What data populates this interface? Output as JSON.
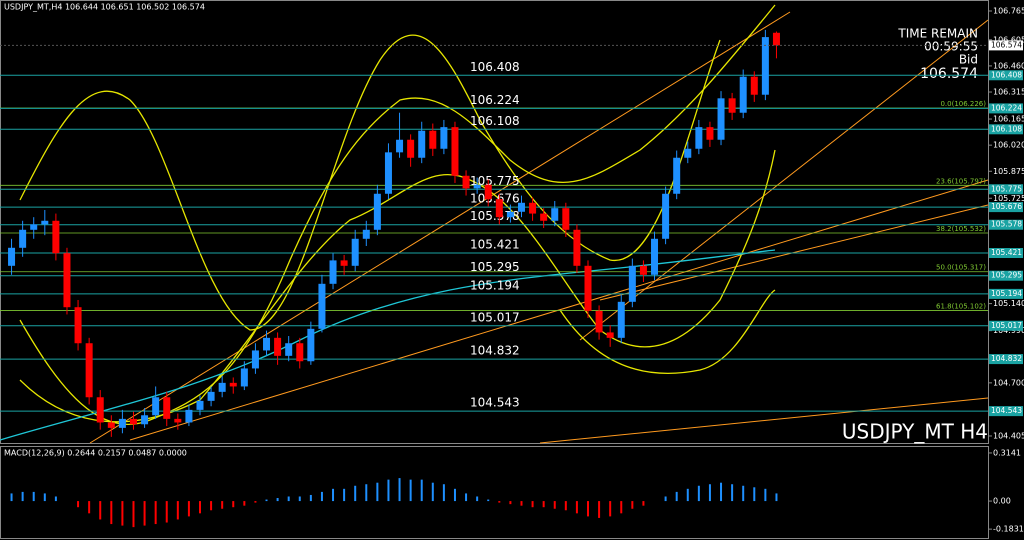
{
  "chart_data": {
    "type": "candlestick",
    "header": "USDJPY_MT,H4  106.644 106.651 106.502 106.574",
    "symbol_label": "USDJPY_MT H4",
    "time_remain_label": "TIME REMAIN",
    "time_remain": "00:59:55",
    "bid_label": "Bid",
    "bid": 106.574,
    "up_color": "#1e90ff",
    "down_color": "#ff0000",
    "ylim": [
      104.366,
      106.826
    ],
    "yticks": [
      106.765,
      106.605,
      {
        "value": 106.46,
        "label": "106.460"
      },
      106.315,
      106.165,
      {
        "value": 106.02,
        "label": "106.020"
      },
      105.875,
      105.725,
      {
        "value": 105.14,
        "label": "105.140"
      },
      {
        "value": 104.99,
        "label": "104.990"
      },
      {
        "value": 104.7,
        "label": "104.700"
      },
      104.405
    ],
    "level_color": "#1aa3a3",
    "levels": [
      106.408,
      106.224,
      106.108,
      105.775,
      105.676,
      105.578,
      105.421,
      105.295,
      105.194,
      105.017,
      104.832,
      104.543
    ],
    "fib_color": "#7fc832",
    "fib_levels": [
      {
        "value": 106.226,
        "label": "0.0(106.226)"
      },
      {
        "value": 105.797,
        "label": "23.6(105.797)"
      },
      {
        "value": 105.532,
        "label": "38.2(105.532)"
      },
      {
        "value": 105.317,
        "label": "50.0(105.317)"
      },
      {
        "value": 105.102,
        "label": "61.8(105.102)"
      }
    ],
    "candles": [
      [
        105.35,
        105.5,
        105.3,
        105.45
      ],
      [
        105.45,
        105.6,
        105.4,
        105.55
      ],
      [
        105.55,
        105.62,
        105.5,
        105.58
      ],
      [
        105.58,
        105.66,
        105.52,
        105.6
      ],
      [
        105.6,
        105.64,
        105.38,
        105.42
      ],
      [
        105.42,
        105.45,
        105.08,
        105.12
      ],
      [
        105.12,
        105.16,
        104.88,
        104.92
      ],
      [
        104.92,
        104.95,
        104.58,
        104.62
      ],
      [
        104.62,
        104.66,
        104.44,
        104.48
      ],
      [
        104.48,
        104.52,
        104.4,
        104.45
      ],
      [
        104.45,
        104.55,
        104.42,
        104.5
      ],
      [
        104.5,
        104.54,
        104.44,
        104.47
      ],
      [
        104.47,
        104.56,
        104.45,
        104.52
      ],
      [
        104.52,
        104.68,
        104.5,
        104.62
      ],
      [
        104.62,
        104.65,
        104.46,
        104.5
      ],
      [
        104.5,
        104.53,
        104.44,
        104.48
      ],
      [
        104.48,
        104.58,
        104.46,
        104.55
      ],
      [
        104.55,
        104.63,
        104.52,
        104.6
      ],
      [
        104.6,
        104.68,
        104.57,
        104.65
      ],
      [
        104.65,
        104.74,
        104.62,
        104.7
      ],
      [
        104.7,
        104.73,
        104.64,
        104.68
      ],
      [
        104.68,
        104.82,
        104.66,
        104.78
      ],
      [
        104.78,
        104.92,
        104.75,
        104.88
      ],
      [
        104.88,
        104.99,
        104.85,
        104.95
      ],
      [
        104.95,
        104.98,
        104.8,
        104.85
      ],
      [
        104.85,
        104.96,
        104.82,
        104.92
      ],
      [
        104.92,
        104.95,
        104.78,
        104.82
      ],
      [
        104.82,
        105.04,
        104.8,
        105.0
      ],
      [
        105.0,
        105.3,
        104.98,
        105.25
      ],
      [
        105.25,
        105.42,
        105.22,
        105.38
      ],
      [
        105.38,
        105.41,
        105.3,
        105.35
      ],
      [
        105.35,
        105.55,
        105.32,
        105.5
      ],
      [
        105.5,
        105.6,
        105.46,
        105.55
      ],
      [
        105.55,
        105.8,
        105.52,
        105.75
      ],
      [
        105.75,
        106.03,
        105.72,
        105.98
      ],
      [
        105.98,
        106.2,
        105.95,
        106.05
      ],
      [
        106.05,
        106.08,
        105.9,
        105.95
      ],
      [
        105.95,
        106.15,
        105.92,
        106.1
      ],
      [
        106.1,
        106.14,
        105.96,
        106.0
      ],
      [
        106.0,
        106.16,
        105.97,
        106.12
      ],
      [
        106.12,
        106.15,
        105.81,
        105.85
      ],
      [
        105.85,
        105.88,
        105.74,
        105.78
      ],
      [
        105.78,
        105.84,
        105.75,
        105.8
      ],
      [
        105.8,
        105.83,
        105.68,
        105.72
      ],
      [
        105.72,
        105.75,
        105.58,
        105.62
      ],
      [
        105.62,
        105.69,
        105.59,
        105.65
      ],
      [
        105.65,
        105.74,
        105.62,
        105.7
      ],
      [
        105.7,
        105.73,
        105.6,
        105.64
      ],
      [
        105.64,
        105.67,
        105.56,
        105.6
      ],
      [
        105.6,
        105.71,
        105.57,
        105.67
      ],
      [
        105.67,
        105.7,
        105.51,
        105.55
      ],
      [
        105.55,
        105.58,
        105.31,
        105.35
      ],
      [
        105.35,
        105.38,
        105.06,
        105.1
      ],
      [
        105.1,
        105.13,
        104.94,
        104.98
      ],
      [
        104.98,
        105.02,
        104.9,
        104.95
      ],
      [
        104.95,
        105.19,
        104.92,
        105.15
      ],
      [
        105.15,
        105.39,
        105.12,
        105.35
      ],
      [
        105.35,
        105.38,
        105.26,
        105.3
      ],
      [
        105.3,
        105.54,
        105.27,
        105.5
      ],
      [
        105.5,
        105.79,
        105.47,
        105.75
      ],
      [
        105.75,
        105.99,
        105.72,
        105.95
      ],
      [
        105.95,
        106.04,
        105.92,
        106.0
      ],
      [
        106.0,
        106.16,
        105.97,
        106.12
      ],
      [
        106.12,
        106.15,
        106.01,
        106.05
      ],
      [
        106.05,
        106.32,
        106.02,
        106.28
      ],
      [
        106.28,
        106.31,
        106.16,
        106.2
      ],
      [
        106.2,
        106.44,
        106.17,
        106.4
      ],
      [
        106.4,
        106.43,
        106.26,
        106.3
      ],
      [
        106.3,
        106.66,
        106.27,
        106.62
      ],
      [
        106.644,
        106.651,
        106.502,
        106.574
      ]
    ],
    "macd": {
      "label": "MACD(12,26,9) 0.2644 0.2157 0.0487 0.0000",
      "ylim": [
        -0.241,
        0.353
      ],
      "yticks": [
        0.3141,
        {
          "value": 0,
          "label": "0.00"
        },
        -0.1831
      ],
      "values": [
        0.05,
        0.06,
        0.06,
        0.05,
        0.03,
        0.0,
        -0.04,
        -0.08,
        -0.12,
        -0.15,
        -0.16,
        -0.17,
        -0.16,
        -0.15,
        -0.14,
        -0.12,
        -0.1,
        -0.08,
        -0.06,
        -0.05,
        -0.04,
        -0.03,
        -0.01,
        0.01,
        0.02,
        0.03,
        0.03,
        0.04,
        0.06,
        0.08,
        0.08,
        0.1,
        0.11,
        0.12,
        0.14,
        0.15,
        0.14,
        0.14,
        0.12,
        0.11,
        0.08,
        0.05,
        0.03,
        0.01,
        -0.01,
        -0.02,
        -0.03,
        -0.04,
        -0.04,
        -0.05,
        -0.06,
        -0.08,
        -0.1,
        -0.11,
        -0.1,
        -0.08,
        -0.05,
        -0.03,
        0.0,
        0.03,
        0.06,
        0.08,
        0.1,
        0.11,
        0.12,
        0.11,
        0.1,
        0.09,
        0.08,
        0.05
      ]
    }
  }
}
